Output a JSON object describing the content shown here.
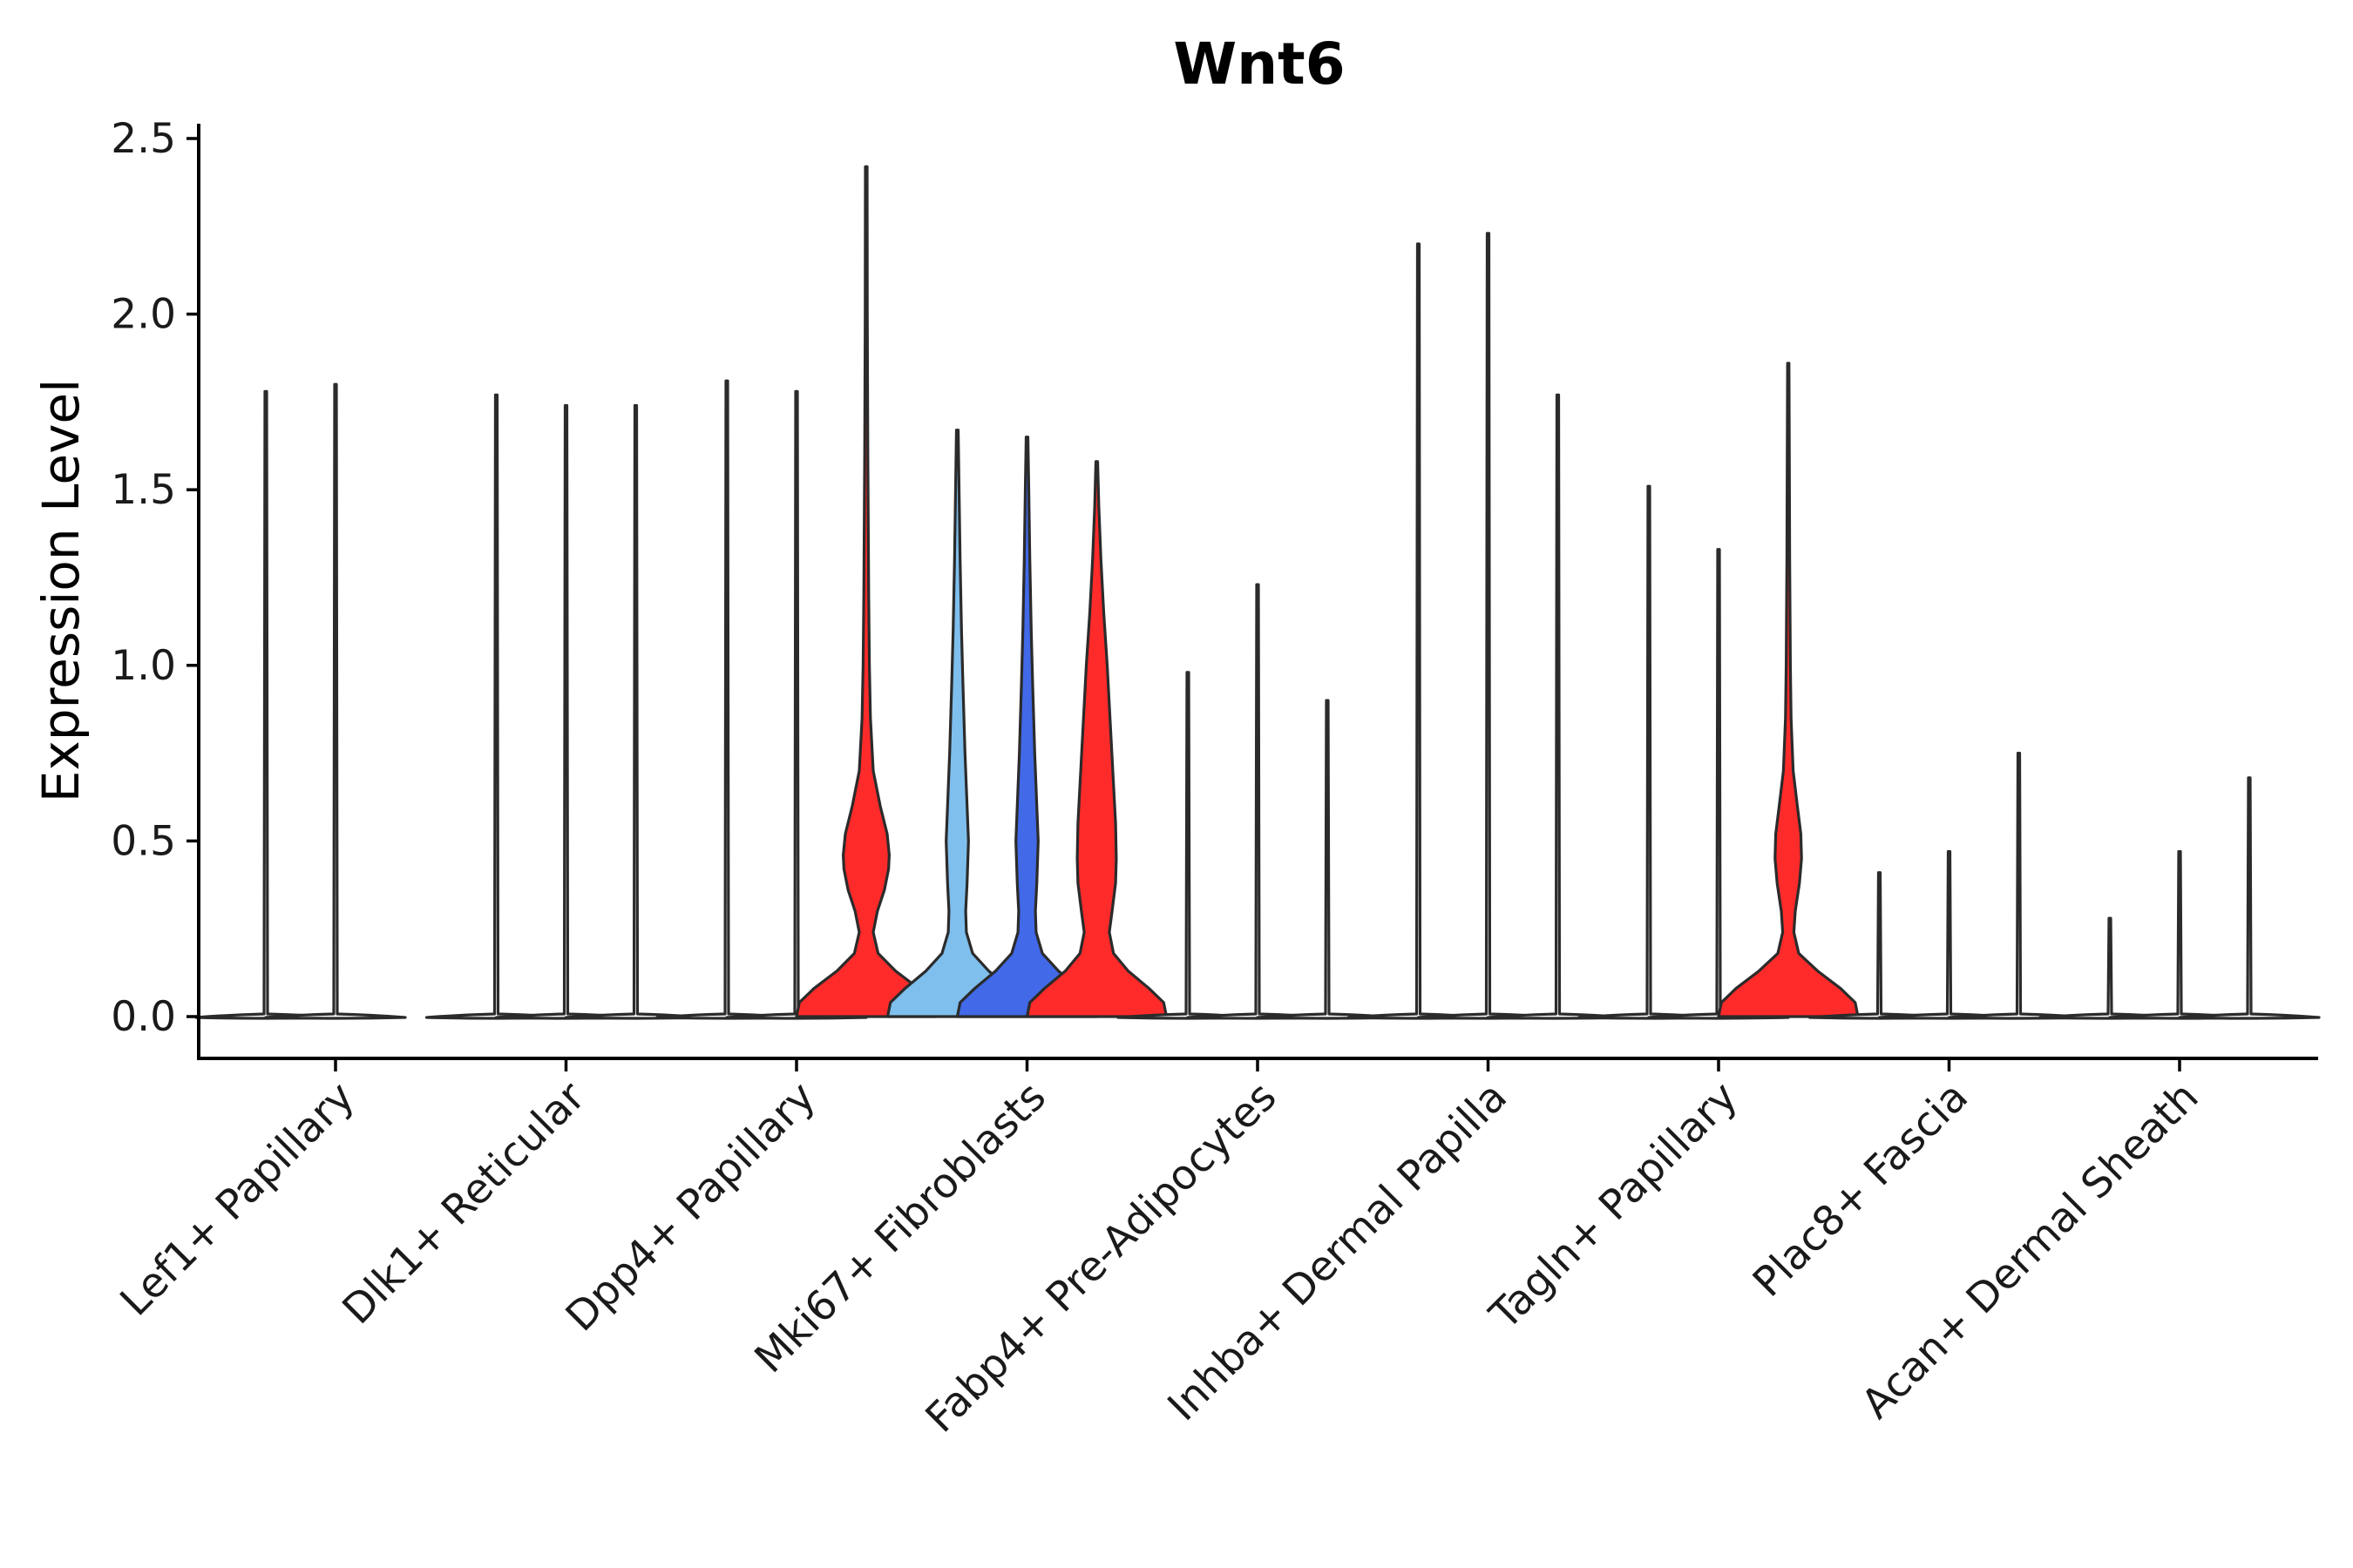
{
  "chart_data": {
    "type": "violin",
    "title": "Wnt6",
    "xlabel": "",
    "ylabel": "Expression Level",
    "ylim": [
      -0.12,
      2.55
    ],
    "yticks": [
      0.0,
      0.5,
      1.0,
      1.5,
      2.0,
      2.5
    ],
    "ytick_labels": [
      "0.0",
      "0.5",
      "1.0",
      "1.5",
      "2.0",
      "2.5"
    ],
    "grid": false,
    "legend": "none",
    "categories": [
      "Lef1+ Papillary",
      "Dlk1+ Reticular",
      "Dpp4+ Papillary",
      "Mki67+ Fibroblasts",
      "Fabp4+ Pre-Adipocytes",
      "Inhba+ Dermal Papilla",
      "Tagln+ Papillary",
      "Plac8+ Fascia",
      "Acan+ Dermal Sheath"
    ],
    "groups_per_category": 3,
    "colors": {
      "red": "#ff2a2a",
      "light_blue": "#7fbfee",
      "blue": "#4169e8",
      "line": "#2b2b2b"
    },
    "violins": [
      {
        "category": "Lef1+ Papillary",
        "slot": 0,
        "max": 1.78,
        "shape": "flat"
      },
      {
        "category": "Lef1+ Papillary",
        "slot": 1,
        "max": 1.8,
        "shape": "flat"
      },
      {
        "category": "Dlk1+ Reticular",
        "slot": 0,
        "max": 1.77,
        "shape": "flat"
      },
      {
        "category": "Dlk1+ Reticular",
        "slot": 1,
        "max": 1.74,
        "shape": "flat"
      },
      {
        "category": "Dlk1+ Reticular",
        "slot": 2,
        "max": 1.74,
        "shape": "flat"
      },
      {
        "category": "Dpp4+ Papillary",
        "slot": 0,
        "max": 1.81,
        "shape": "flat"
      },
      {
        "category": "Dpp4+ Papillary",
        "slot": 1,
        "max": 1.78,
        "shape": "flat"
      },
      {
        "category": "Dpp4+ Papillary",
        "slot": 2,
        "max": 2.42,
        "shape": "filled",
        "color": "red",
        "profile": [
          [
            0.0,
            1.0
          ],
          [
            0.04,
            0.96
          ],
          [
            0.08,
            0.75
          ],
          [
            0.13,
            0.42
          ],
          [
            0.18,
            0.17
          ],
          [
            0.24,
            0.1
          ],
          [
            0.3,
            0.16
          ],
          [
            0.36,
            0.26
          ],
          [
            0.42,
            0.32
          ],
          [
            0.46,
            0.33
          ],
          [
            0.52,
            0.3
          ],
          [
            0.6,
            0.2
          ],
          [
            0.7,
            0.1
          ],
          [
            0.85,
            0.06
          ],
          [
            1.0,
            0.045
          ],
          [
            1.2,
            0.035
          ],
          [
            1.6,
            0.022
          ],
          [
            2.0,
            0.015
          ],
          [
            2.42,
            0.012
          ]
        ]
      },
      {
        "category": "Mki67+ Fibroblasts",
        "slot": 0,
        "max": 1.67,
        "shape": "filled",
        "color": "light_blue",
        "profile": [
          [
            0.0,
            1.0
          ],
          [
            0.04,
            0.96
          ],
          [
            0.08,
            0.75
          ],
          [
            0.13,
            0.45
          ],
          [
            0.18,
            0.22
          ],
          [
            0.24,
            0.13
          ],
          [
            0.3,
            0.12
          ],
          [
            0.38,
            0.14
          ],
          [
            0.5,
            0.16
          ],
          [
            0.6,
            0.14
          ],
          [
            0.75,
            0.11
          ],
          [
            0.95,
            0.08
          ],
          [
            1.1,
            0.06
          ],
          [
            1.3,
            0.04
          ],
          [
            1.5,
            0.025
          ],
          [
            1.67,
            0.012
          ]
        ]
      },
      {
        "category": "Mki67+ Fibroblasts",
        "slot": 1,
        "max": 1.65,
        "shape": "filled",
        "color": "blue",
        "profile": [
          [
            0.0,
            1.0
          ],
          [
            0.04,
            0.96
          ],
          [
            0.08,
            0.75
          ],
          [
            0.13,
            0.45
          ],
          [
            0.18,
            0.22
          ],
          [
            0.24,
            0.13
          ],
          [
            0.3,
            0.12
          ],
          [
            0.38,
            0.14
          ],
          [
            0.5,
            0.16
          ],
          [
            0.6,
            0.14
          ],
          [
            0.75,
            0.11
          ],
          [
            0.95,
            0.08
          ],
          [
            1.1,
            0.06
          ],
          [
            1.3,
            0.04
          ],
          [
            1.5,
            0.025
          ],
          [
            1.65,
            0.012
          ]
        ]
      },
      {
        "category": "Mki67+ Fibroblasts",
        "slot": 2,
        "max": 1.58,
        "shape": "filled",
        "color": "red",
        "profile": [
          [
            0.0,
            1.0
          ],
          [
            0.04,
            0.96
          ],
          [
            0.08,
            0.75
          ],
          [
            0.13,
            0.45
          ],
          [
            0.18,
            0.24
          ],
          [
            0.24,
            0.18
          ],
          [
            0.3,
            0.22
          ],
          [
            0.38,
            0.27
          ],
          [
            0.45,
            0.28
          ],
          [
            0.55,
            0.27
          ],
          [
            0.7,
            0.23
          ],
          [
            0.85,
            0.19
          ],
          [
            1.0,
            0.15
          ],
          [
            1.15,
            0.1
          ],
          [
            1.3,
            0.06
          ],
          [
            1.45,
            0.03
          ],
          [
            1.58,
            0.012
          ]
        ]
      },
      {
        "category": "Fabp4+ Pre-Adipocytes",
        "slot": 0,
        "max": 0.98,
        "shape": "flat"
      },
      {
        "category": "Fabp4+ Pre-Adipocytes",
        "slot": 1,
        "max": 1.23,
        "shape": "flat"
      },
      {
        "category": "Fabp4+ Pre-Adipocytes",
        "slot": 2,
        "max": 0.9,
        "shape": "flat"
      },
      {
        "category": "Inhba+ Dermal Papilla",
        "slot": 0,
        "max": 2.2,
        "shape": "flat"
      },
      {
        "category": "Inhba+ Dermal Papilla",
        "slot": 1,
        "max": 2.23,
        "shape": "flat"
      },
      {
        "category": "Inhba+ Dermal Papilla",
        "slot": 2,
        "max": 1.77,
        "shape": "flat"
      },
      {
        "category": "Tagln+ Papillary",
        "slot": 0,
        "max": 1.51,
        "shape": "flat"
      },
      {
        "category": "Tagln+ Papillary",
        "slot": 1,
        "max": 1.33,
        "shape": "flat"
      },
      {
        "category": "Tagln+ Papillary",
        "slot": 2,
        "max": 1.86,
        "shape": "filled",
        "color": "red",
        "profile": [
          [
            0.0,
            1.0
          ],
          [
            0.04,
            0.96
          ],
          [
            0.08,
            0.75
          ],
          [
            0.13,
            0.42
          ],
          [
            0.18,
            0.15
          ],
          [
            0.24,
            0.08
          ],
          [
            0.3,
            0.1
          ],
          [
            0.38,
            0.16
          ],
          [
            0.45,
            0.19
          ],
          [
            0.52,
            0.18
          ],
          [
            0.6,
            0.13
          ],
          [
            0.7,
            0.07
          ],
          [
            0.85,
            0.04
          ],
          [
            1.0,
            0.03
          ],
          [
            1.3,
            0.02
          ],
          [
            1.6,
            0.015
          ],
          [
            1.86,
            0.01
          ]
        ]
      },
      {
        "category": "Plac8+ Fascia",
        "slot": 0,
        "max": 0.41,
        "shape": "flat"
      },
      {
        "category": "Plac8+ Fascia",
        "slot": 1,
        "max": 0.47,
        "shape": "flat"
      },
      {
        "category": "Plac8+ Fascia",
        "slot": 2,
        "max": 0.75,
        "shape": "flat"
      },
      {
        "category": "Acan+ Dermal Sheath",
        "slot": 0,
        "max": 0.28,
        "shape": "flat"
      },
      {
        "category": "Acan+ Dermal Sheath",
        "slot": 1,
        "max": 0.47,
        "shape": "flat"
      },
      {
        "category": "Acan+ Dermal Sheath",
        "slot": 2,
        "max": 0.68,
        "shape": "flat"
      }
    ]
  }
}
